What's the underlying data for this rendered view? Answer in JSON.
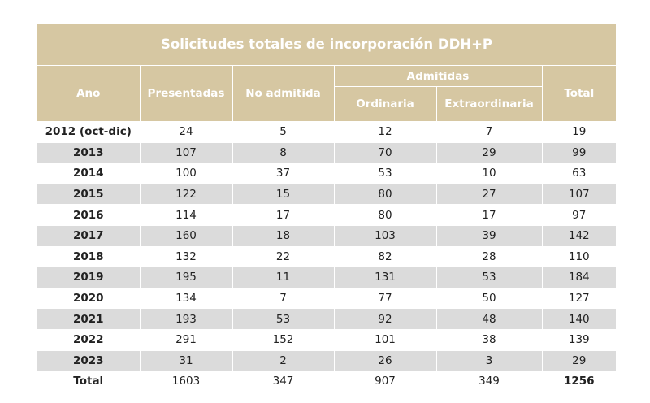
{
  "table": {
    "title": "Solicitudes totales de incorporación DDH+P",
    "headers": {
      "year": "Año",
      "presented": "Presentadas",
      "not_admitted": "No admitida",
      "admitted": "Admitidas",
      "ordinary": "Ordinaria",
      "extraordinary": "Extraordinaria",
      "total": "Total"
    },
    "rows": [
      {
        "year": "2012 (oct-dic)",
        "presented": "24",
        "not_admitted": "5",
        "ordinary": "12",
        "extraordinary": "7",
        "total": "19"
      },
      {
        "year": "2013",
        "presented": "107",
        "not_admitted": "8",
        "ordinary": "70",
        "extraordinary": "29",
        "total": "99"
      },
      {
        "year": "2014",
        "presented": "100",
        "not_admitted": "37",
        "ordinary": "53",
        "extraordinary": "10",
        "total": "63"
      },
      {
        "year": "2015",
        "presented": "122",
        "not_admitted": "15",
        "ordinary": "80",
        "extraordinary": "27",
        "total": "107"
      },
      {
        "year": "2016",
        "presented": "114",
        "not_admitted": "17",
        "ordinary": "80",
        "extraordinary": "17",
        "total": "97"
      },
      {
        "year": "2017",
        "presented": "160",
        "not_admitted": "18",
        "ordinary": "103",
        "extraordinary": "39",
        "total": "142"
      },
      {
        "year": "2018",
        "presented": "132",
        "not_admitted": "22",
        "ordinary": "82",
        "extraordinary": "28",
        "total": "110"
      },
      {
        "year": "2019",
        "presented": "195",
        "not_admitted": "11",
        "ordinary": "131",
        "extraordinary": "53",
        "total": "184"
      },
      {
        "year": "2020",
        "presented": "134",
        "not_admitted": "7",
        "ordinary": "77",
        "extraordinary": "50",
        "total": "127"
      },
      {
        "year": "2021",
        "presented": "193",
        "not_admitted": "53",
        "ordinary": "92",
        "extraordinary": "48",
        "total": "140"
      },
      {
        "year": "2022",
        "presented": "291",
        "not_admitted": "152",
        "ordinary": "101",
        "extraordinary": "38",
        "total": "139"
      },
      {
        "year": "2023",
        "presented": "31",
        "not_admitted": "2",
        "ordinary": "26",
        "extraordinary": "3",
        "total": "29"
      }
    ],
    "totals": {
      "label": "Total",
      "presented": "1603",
      "not_admitted": "347",
      "ordinary": "907",
      "extraordinary": "349",
      "total": "1256"
    }
  },
  "colors": {
    "header_bg": "#d6c7a2",
    "header_text": "#ffffff",
    "stripe_bg": "#dbdbdb"
  }
}
